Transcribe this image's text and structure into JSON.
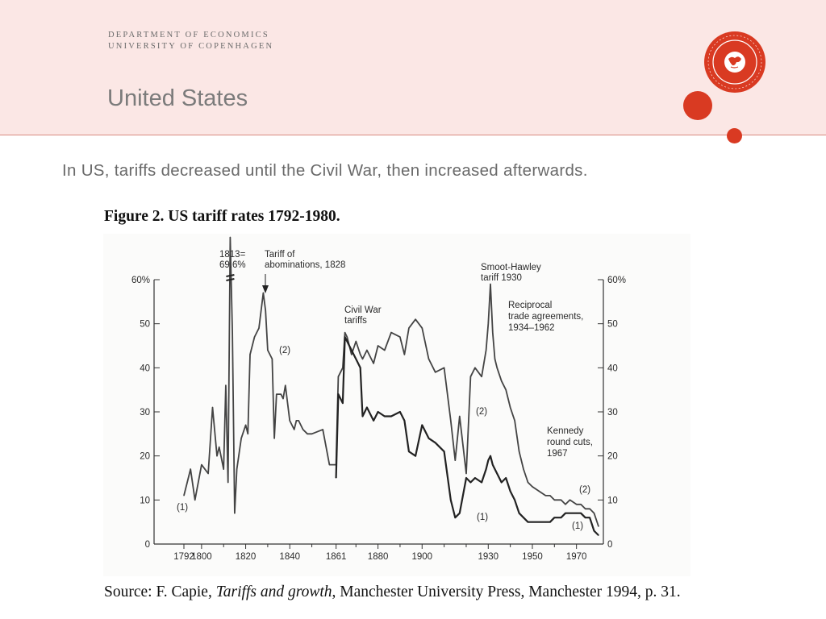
{
  "header": {
    "dept_line1": "DEPARTMENT OF ECONOMICS",
    "dept_line2": "UNIVERSITY OF COPENHAGEN",
    "title": "United States",
    "brand_color": "#d93a22",
    "seal_icon": "university-seal-icon"
  },
  "bullet": "In US, tariffs decreased until the Civil War, then increased afterwards.",
  "figure_title": "Figure 2. US tariff rates 1792-1980.",
  "source": {
    "prefix": "Source: F. Capie, ",
    "book": "Tariffs and growth",
    "suffix": ", Manchester University Press, Manchester 1994, p. 31."
  },
  "chart_data": {
    "type": "line",
    "xlim": [
      1792,
      1980
    ],
    "ylim": [
      0,
      60
    ],
    "x_ticks": [
      {
        "value": 1792,
        "label": "1792"
      },
      {
        "value": 1800,
        "label": "1800"
      },
      {
        "value": 1820,
        "label": "1820"
      },
      {
        "value": 1840,
        "label": "1840"
      },
      {
        "value": 1861,
        "label": "1861"
      },
      {
        "value": 1880,
        "label": "1880"
      },
      {
        "value": 1900,
        "label": "1900"
      },
      {
        "value": 1930,
        "label": "1930"
      },
      {
        "value": 1950,
        "label": "1950"
      },
      {
        "value": 1970,
        "label": "1970"
      }
    ],
    "x_minor_ticks": [
      1810,
      1830,
      1850,
      1870,
      1890,
      1910,
      1920,
      1940,
      1960
    ],
    "y_ticks_left": [
      {
        "value": 0,
        "label": "0"
      },
      {
        "value": 10,
        "label": "10"
      },
      {
        "value": 20,
        "label": "20"
      },
      {
        "value": 30,
        "label": "30"
      },
      {
        "value": 40,
        "label": "40"
      },
      {
        "value": 50,
        "label": "50"
      },
      {
        "value": 60,
        "label": "60%"
      }
    ],
    "y_ticks_right": [
      {
        "value": 0,
        "label": "0"
      },
      {
        "value": 10,
        "label": "10"
      },
      {
        "value": 20,
        "label": "20"
      },
      {
        "value": 30,
        "label": "30"
      },
      {
        "value": 40,
        "label": "40"
      },
      {
        "value": 50,
        "label": "50"
      },
      {
        "value": 60,
        "label": "60%"
      }
    ],
    "grid": false,
    "series": [
      {
        "name": "(2)",
        "color": "#444444",
        "x": [
          1792,
          1795,
          1797,
          1800,
          1803,
          1805,
          1807,
          1808,
          1810,
          1811,
          1812,
          1813,
          1814,
          1815,
          1816,
          1818,
          1820,
          1821,
          1822,
          1824,
          1826,
          1828,
          1829,
          1830,
          1832,
          1833,
          1834,
          1836,
          1837,
          1838,
          1840,
          1842,
          1843,
          1844,
          1846,
          1848,
          1850,
          1855,
          1858,
          1861,
          1862,
          1864,
          1865,
          1866,
          1868,
          1870,
          1872,
          1873,
          1875,
          1878,
          1880,
          1883,
          1886,
          1890,
          1892,
          1894,
          1897,
          1900,
          1903,
          1906,
          1910,
          1913,
          1915,
          1917,
          1920,
          1922,
          1924,
          1927,
          1929,
          1930,
          1931,
          1932,
          1933,
          1934,
          1936,
          1938,
          1940,
          1942,
          1944,
          1946,
          1948,
          1950,
          1953,
          1956,
          1958,
          1960,
          1963,
          1965,
          1967,
          1970,
          1972,
          1974,
          1976,
          1978,
          1980
        ],
        "values": [
          11,
          17,
          10,
          18,
          16,
          31,
          20,
          22,
          17,
          36,
          14,
          69.6,
          48,
          7,
          17,
          24,
          27,
          25,
          43,
          47,
          49,
          57,
          53,
          44,
          42,
          24,
          34,
          34,
          33,
          36,
          28,
          26,
          28,
          28,
          26,
          25,
          25,
          26,
          18,
          18,
          38,
          40,
          48,
          47,
          43,
          46,
          43,
          42,
          44,
          41,
          45,
          44,
          48,
          47,
          43,
          49,
          51,
          49,
          42,
          39,
          40,
          28,
          19,
          29,
          16,
          38,
          40,
          38,
          44,
          50,
          59,
          48,
          42,
          40,
          37,
          35,
          31,
          28,
          21,
          17,
          14,
          13,
          12,
          11,
          11,
          10,
          10,
          9,
          10,
          9,
          9,
          8,
          8,
          7,
          4
        ]
      },
      {
        "name": "(1)",
        "color": "#222222",
        "x": [
          1861,
          1862,
          1864,
          1865,
          1866,
          1868,
          1870,
          1872,
          1873,
          1875,
          1878,
          1880,
          1883,
          1886,
          1890,
          1892,
          1894,
          1897,
          1900,
          1903,
          1906,
          1910,
          1913,
          1915,
          1917,
          1920,
          1922,
          1924,
          1927,
          1929,
          1930,
          1931,
          1932,
          1933,
          1934,
          1936,
          1938,
          1940,
          1942,
          1944,
          1946,
          1948,
          1950,
          1953,
          1956,
          1958,
          1960,
          1963,
          1965,
          1967,
          1970,
          1972,
          1974,
          1976,
          1978,
          1980
        ],
        "values": [
          15,
          34,
          32,
          47,
          46,
          44,
          42,
          40,
          29,
          31,
          28,
          30,
          29,
          29,
          30,
          28,
          21,
          20,
          27,
          24,
          23,
          21,
          10,
          6,
          7,
          15,
          14,
          15,
          14,
          17,
          19,
          20,
          18,
          17,
          16,
          14,
          15,
          12,
          10,
          7,
          6,
          5,
          5,
          5,
          5,
          5,
          6,
          6,
          7,
          7,
          7,
          7,
          6,
          6,
          3,
          2
        ]
      }
    ],
    "annotations": [
      {
        "lines": [
          "1813=",
          "69.6%"
        ]
      },
      {
        "lines": [
          "Tariff of",
          "abominations, 1828"
        ]
      },
      {
        "lines": [
          "Civil War",
          "tariffs"
        ]
      },
      {
        "lines": [
          "Smoot-Hawley",
          "tariff 1930"
        ]
      },
      {
        "lines": [
          "Reciprocal",
          "trade agreements,",
          "1934–1962"
        ]
      },
      {
        "lines": [
          "Kennedy",
          "round cuts,",
          "1967"
        ]
      },
      {
        "lines": [
          "(2)"
        ]
      },
      {
        "lines": [
          "(2)"
        ]
      },
      {
        "lines": [
          "(2)"
        ]
      },
      {
        "lines": [
          "(1)"
        ]
      },
      {
        "lines": [
          "(1)"
        ]
      },
      {
        "lines": [
          "(1)"
        ]
      }
    ]
  }
}
